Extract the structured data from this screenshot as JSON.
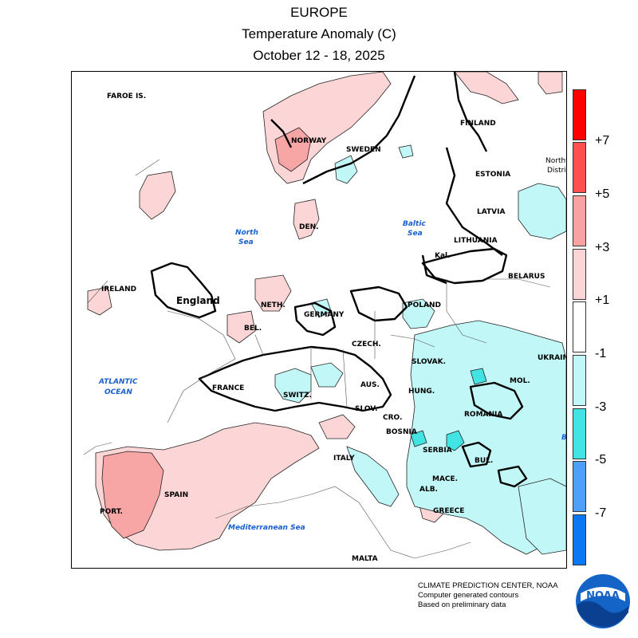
{
  "header": {
    "region": "EUROPE",
    "product": "Temperature Anomaly (C)",
    "period": "October 12 - 18, 2025"
  },
  "map": {
    "country_labels": [
      {
        "id": "faroe",
        "text": "FAROE IS."
      },
      {
        "id": "norway",
        "text": "NORWAY"
      },
      {
        "id": "sweden",
        "text": "SWEDEN"
      },
      {
        "id": "finland",
        "text": "FINLAND"
      },
      {
        "id": "estonia",
        "text": "ESTONIA"
      },
      {
        "id": "latvia",
        "text": "LATVIA"
      },
      {
        "id": "lithuania",
        "text": "LITHUANIA"
      },
      {
        "id": "kal",
        "text": "Kal."
      },
      {
        "id": "belarus",
        "text": "BELARUS"
      },
      {
        "id": "den",
        "text": "DEN."
      },
      {
        "id": "ireland",
        "text": "IRELAND"
      },
      {
        "id": "england",
        "text": "England"
      },
      {
        "id": "neth",
        "text": "NETH."
      },
      {
        "id": "bel",
        "text": "BEL."
      },
      {
        "id": "germany",
        "text": "GERMANY"
      },
      {
        "id": "poland",
        "text": "POLAND"
      },
      {
        "id": "czech",
        "text": "CZECH."
      },
      {
        "id": "slovak",
        "text": "SLOVAK."
      },
      {
        "id": "ukraine",
        "text": "UKRAINE"
      },
      {
        "id": "france",
        "text": "FRANCE"
      },
      {
        "id": "switz",
        "text": "SWITZ."
      },
      {
        "id": "aus",
        "text": "AUS."
      },
      {
        "id": "hung",
        "text": "HUNG."
      },
      {
        "id": "mol",
        "text": "MOL."
      },
      {
        "id": "romania",
        "text": "ROMANIA"
      },
      {
        "id": "slov",
        "text": "SLOV."
      },
      {
        "id": "cro",
        "text": "CRO."
      },
      {
        "id": "bosnia",
        "text": "BOSNIA"
      },
      {
        "id": "serbia",
        "text": "SERBIA"
      },
      {
        "id": "bul",
        "text": "BUL."
      },
      {
        "id": "mace",
        "text": "MACE."
      },
      {
        "id": "alb",
        "text": "ALB."
      },
      {
        "id": "greece",
        "text": "GREECE"
      },
      {
        "id": "italy",
        "text": "ITALY"
      },
      {
        "id": "spain",
        "text": "SPAIN"
      },
      {
        "id": "port",
        "text": "PORT."
      },
      {
        "id": "malta",
        "text": "MALTA"
      },
      {
        "id": "northwest_1",
        "text": "Northw"
      },
      {
        "id": "northwest_2",
        "text": "Distri"
      }
    ],
    "sea_labels": [
      {
        "id": "north_sea_1",
        "text": "North"
      },
      {
        "id": "north_sea_2",
        "text": "Sea"
      },
      {
        "id": "baltic_sea_1",
        "text": "Baltic"
      },
      {
        "id": "baltic_sea_2",
        "text": "Sea"
      },
      {
        "id": "atlantic_1",
        "text": "ATLANTIC"
      },
      {
        "id": "atlantic_2",
        "text": "OCEAN"
      },
      {
        "id": "med_sea",
        "text": "Mediterranean Sea"
      },
      {
        "id": "black_sea_b",
        "text": "B"
      }
    ]
  },
  "legend": {
    "swatches": [
      {
        "color": "#ff0000"
      },
      {
        "color": "#ff4f4f"
      },
      {
        "color": "#f9a2a2"
      },
      {
        "color": "#fcd6d6"
      },
      {
        "color": "#ffffff"
      },
      {
        "color": "#c2f7f7"
      },
      {
        "color": "#42e3e3"
      },
      {
        "color": "#4d9ff7"
      },
      {
        "color": "#0a78f2"
      }
    ],
    "ticks": [
      "+7",
      "+5",
      "+3",
      "+1",
      "-1",
      "-3",
      "-5",
      "-7"
    ]
  },
  "colors": {
    "warm_light": "#fcd6d6",
    "warm_mid": "#f9a2a2",
    "warm_strong": "#f07a7a",
    "cool_light": "#c2f7f7",
    "cool_mid": "#42e3e3",
    "sea_label": "#1a5fd0",
    "noaa_blue": "#1463c6"
  },
  "credits": {
    "line1": "CLIMATE PREDICTION CENTER, NOAA",
    "line2": "Computer generated contours",
    "line3": "Based on preliminary data",
    "logo_text": "NOAA"
  }
}
